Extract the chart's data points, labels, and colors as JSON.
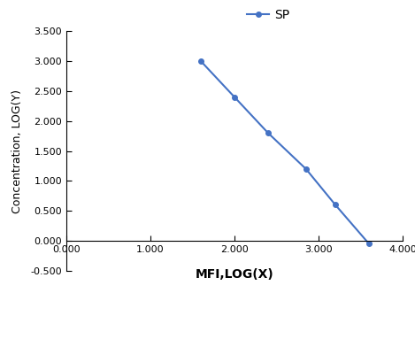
{
  "x": [
    1.6,
    2.0,
    2.4,
    2.85,
    3.2,
    3.6
  ],
  "y": [
    3.0,
    2.4,
    1.8,
    1.2,
    0.6,
    -0.05
  ],
  "line_color": "#4472C4",
  "marker": "o",
  "marker_size": 4,
  "legend_label": "SP",
  "xlabel": "MFI,LOG(X)",
  "ylabel": "Concentration, LOG(Y)",
  "xlim": [
    0.0,
    4.0
  ],
  "ylim": [
    -0.5,
    3.5
  ],
  "xticks": [
    0.0,
    1.0,
    2.0,
    3.0,
    4.0
  ],
  "yticks": [
    -0.5,
    0.0,
    0.5,
    1.0,
    1.5,
    2.0,
    2.5,
    3.0,
    3.5
  ],
  "xlabel_fontsize": 10,
  "ylabel_fontsize": 9,
  "tick_fontsize": 8,
  "legend_fontsize": 10,
  "background_color": "#ffffff"
}
